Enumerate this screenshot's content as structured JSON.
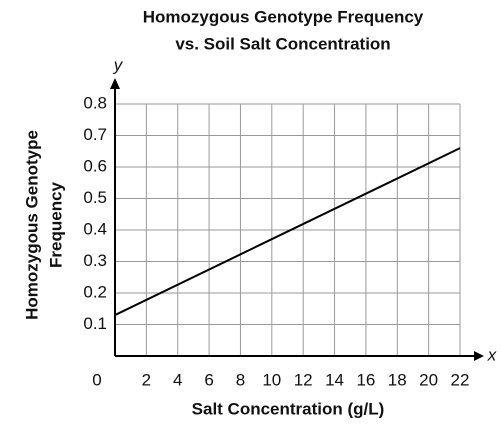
{
  "chart_data": {
    "type": "line",
    "title": [
      "Homozygous Genotype Frequency",
      "vs. Soil Salt Concentration"
    ],
    "x_label": "Salt Concentration (g/L)",
    "y_label": [
      "Homozygous Genotype",
      "Frequency"
    ],
    "x_axis_symbol": "x",
    "y_axis_symbol": "y",
    "x": [
      0,
      22
    ],
    "series": [
      {
        "name": "Homozygous Genotype Frequency",
        "color": "#000000",
        "values": [
          0.13,
          0.66
        ]
      }
    ],
    "xlim": [
      0,
      22
    ],
    "xticks": [
      0,
      2,
      4,
      6,
      8,
      10,
      12,
      14,
      16,
      18,
      20,
      22
    ],
    "ylim": [
      0,
      0.8
    ],
    "yticks": [
      0.1,
      0.2,
      0.3,
      0.4,
      0.5,
      0.6,
      0.7,
      0.8
    ],
    "grid": true
  }
}
